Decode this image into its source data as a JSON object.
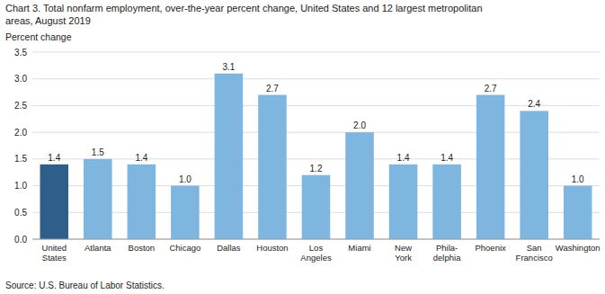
{
  "chart_data": {
    "type": "bar",
    "title": "Chart 3. Total nonfarm employment, over-the-year percent change, United  States and 12 largest metropolitan\nareas, August 2019",
    "y_label": "Percent change",
    "source": "Source: U.S. Bureau of Labor Statistics.",
    "categories": [
      "United\nStates",
      "Atlanta",
      "Boston",
      "Chicago",
      "Dallas",
      "Houston",
      "Los\nAngeles",
      "Miami",
      "New\nYork",
      "Phila-\ndelphia",
      "Phoenix",
      "San\nFrancisco",
      "Washington"
    ],
    "values": [
      1.4,
      1.5,
      1.4,
      1.0,
      3.1,
      2.7,
      1.2,
      2.0,
      1.4,
      1.4,
      2.7,
      2.4,
      1.0
    ],
    "value_labels": [
      "1.4",
      "1.5",
      "1.4",
      "1.0",
      "3.1",
      "2.7",
      "1.2",
      "2.0",
      "1.4",
      "1.4",
      "2.7",
      "2.4",
      "1.0"
    ],
    "colors": [
      "#2e5f8a",
      "#7eb6e0",
      "#7eb6e0",
      "#7eb6e0",
      "#7eb6e0",
      "#7eb6e0",
      "#7eb6e0",
      "#7eb6e0",
      "#7eb6e0",
      "#7eb6e0",
      "#7eb6e0",
      "#7eb6e0",
      "#7eb6e0"
    ],
    "ylim": [
      0,
      3.5
    ],
    "yticks": [
      {
        "value": 0,
        "label": "0.0"
      },
      0.5,
      {
        "value": 1,
        "label": "1.0"
      },
      1.5,
      {
        "value": 2,
        "label": "2.0"
      },
      2.5,
      {
        "value": 3,
        "label": "3.0"
      },
      3.5
    ],
    "grid": true,
    "data_labels": true
  }
}
